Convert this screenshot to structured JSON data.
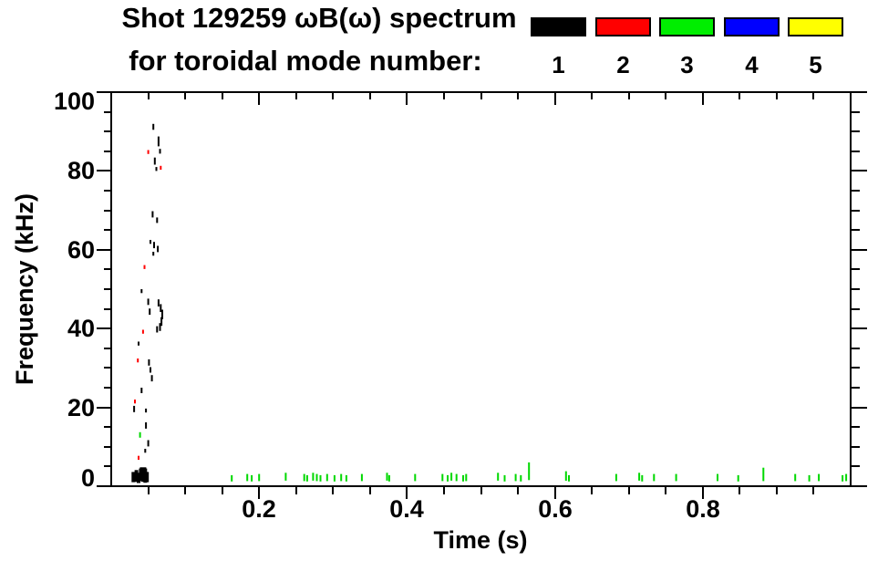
{
  "chart_data": {
    "type": "scatter",
    "title": "Shot 129259 ωB(ω) spectrum",
    "subtitle": "for toroidal mode number:",
    "xlabel": "Time (s)",
    "ylabel": "Frequency (kHz)",
    "xlim": [
      0.0,
      1.0
    ],
    "ylim": [
      0,
      100
    ],
    "grid": false,
    "x_major_ticks": [
      0.2,
      0.4,
      0.6,
      0.8
    ],
    "x_major_labels": [
      "0.2",
      "0.4",
      "0.6",
      "0.8"
    ],
    "x_minor_step": 0.05,
    "y_major_ticks": [
      0,
      20,
      40,
      60,
      80,
      100
    ],
    "y_major_labels": [
      "0",
      "20",
      "40",
      "60",
      "80",
      "100"
    ],
    "y_minor_step": 5,
    "legend": {
      "position": "top-right",
      "entries": [
        {
          "label": "1",
          "color": "#000000"
        },
        {
          "label": "2",
          "color": "#ff0000"
        },
        {
          "label": "3",
          "color": "#00ee00"
        },
        {
          "label": "4",
          "color": "#0000ff"
        },
        {
          "label": "5",
          "color": "#ffff00"
        }
      ]
    },
    "series": [
      {
        "name": "1",
        "color": "#000000",
        "points": [
          [
            0.057,
            91.2,
            1.5
          ],
          [
            0.064,
            87.5,
            2.5
          ],
          [
            0.066,
            85.0,
            1.2
          ],
          [
            0.059,
            82.5,
            1.8
          ],
          [
            0.061,
            80.5,
            1.0
          ],
          [
            0.056,
            69.0,
            1.6
          ],
          [
            0.062,
            67.5,
            1.4
          ],
          [
            0.053,
            62.0,
            1.0
          ],
          [
            0.058,
            61.2,
            1.6
          ],
          [
            0.063,
            60.2,
            1.6
          ],
          [
            0.057,
            59.0,
            1.0
          ],
          [
            0.041,
            49.5,
            1.0
          ],
          [
            0.05,
            46.8,
            1.6
          ],
          [
            0.052,
            44.3,
            1.6
          ],
          [
            0.064,
            46.5,
            1.8
          ],
          [
            0.067,
            45.2,
            2.0
          ],
          [
            0.069,
            43.6,
            2.4
          ],
          [
            0.068,
            41.8,
            2.2
          ],
          [
            0.066,
            40.4,
            2.0
          ],
          [
            0.062,
            39.8,
            1.6
          ],
          [
            0.037,
            36.2,
            1.0
          ],
          [
            0.051,
            31.4,
            1.6
          ],
          [
            0.053,
            29.5,
            1.4
          ],
          [
            0.055,
            27.4,
            1.6
          ],
          [
            0.041,
            24.3,
            1.4
          ],
          [
            0.031,
            19.6,
            1.6
          ],
          [
            0.047,
            19.2,
            1.0
          ],
          [
            0.047,
            15.4,
            1.6
          ],
          [
            0.05,
            10.9,
            1.6
          ],
          [
            0.046,
            9.0,
            1.0
          ],
          [
            0.03,
            2.3,
            2.6,
            4
          ],
          [
            0.034,
            2.6,
            3.0,
            4
          ],
          [
            0.037,
            2.1,
            2.6,
            4
          ],
          [
            0.04,
            2.9,
            3.2,
            4
          ],
          [
            0.043,
            2.4,
            2.6,
            4
          ],
          [
            0.046,
            2.7,
            3.6,
            4
          ],
          [
            0.049,
            2.3,
            2.6,
            3
          ],
          [
            0.043,
            4.0,
            1.6,
            7
          ]
        ]
      },
      {
        "name": "2",
        "color": "#ff0000",
        "points": [
          [
            0.05,
            84.8,
            1.0
          ],
          [
            0.067,
            80.8,
            1.0
          ],
          [
            0.045,
            55.6,
            1.0
          ],
          [
            0.043,
            39.2,
            1.0
          ],
          [
            0.036,
            31.9,
            1.0
          ],
          [
            0.032,
            21.5,
            1.0
          ],
          [
            0.037,
            7.2,
            1.0
          ]
        ]
      },
      {
        "name": "3",
        "color": "#00d800",
        "points": [
          [
            0.039,
            13.0,
            1.4
          ],
          [
            0.163,
            2.0,
            1.6
          ],
          [
            0.184,
            2.2,
            1.8
          ],
          [
            0.19,
            2.0,
            1.6
          ],
          [
            0.2,
            2.2,
            1.8
          ],
          [
            0.236,
            2.4,
            2.0
          ],
          [
            0.261,
            2.2,
            1.8
          ],
          [
            0.265,
            2.0,
            1.6
          ],
          [
            0.273,
            2.4,
            2.0
          ],
          [
            0.278,
            2.2,
            1.8
          ],
          [
            0.283,
            2.0,
            1.6
          ],
          [
            0.292,
            2.2,
            1.8
          ],
          [
            0.302,
            2.0,
            1.6
          ],
          [
            0.311,
            2.2,
            1.8
          ],
          [
            0.318,
            2.0,
            1.6
          ],
          [
            0.339,
            2.2,
            1.8
          ],
          [
            0.373,
            2.4,
            2.0
          ],
          [
            0.376,
            2.0,
            1.6
          ],
          [
            0.411,
            2.2,
            1.8
          ],
          [
            0.448,
            2.2,
            1.8
          ],
          [
            0.455,
            2.0,
            1.6
          ],
          [
            0.46,
            2.4,
            2.0
          ],
          [
            0.467,
            2.2,
            1.8
          ],
          [
            0.476,
            2.0,
            1.6
          ],
          [
            0.48,
            2.2,
            1.8
          ],
          [
            0.523,
            2.4,
            2.0
          ],
          [
            0.532,
            2.0,
            1.6
          ],
          [
            0.547,
            2.2,
            1.8
          ],
          [
            0.554,
            2.0,
            1.6
          ],
          [
            0.565,
            3.8,
            4.5
          ],
          [
            0.615,
            2.6,
            2.4
          ],
          [
            0.619,
            2.0,
            1.6
          ],
          [
            0.683,
            2.2,
            1.8
          ],
          [
            0.714,
            2.4,
            2.0
          ],
          [
            0.718,
            2.0,
            1.6
          ],
          [
            0.734,
            2.2,
            1.8
          ],
          [
            0.764,
            2.2,
            1.8
          ],
          [
            0.82,
            2.2,
            1.8
          ],
          [
            0.848,
            2.0,
            1.6
          ],
          [
            0.882,
            3.0,
            3.4
          ],
          [
            0.925,
            2.2,
            1.8
          ],
          [
            0.944,
            2.0,
            1.6
          ],
          [
            0.957,
            2.2,
            1.8
          ],
          [
            0.989,
            2.0,
            1.6
          ],
          [
            0.994,
            2.2,
            1.8
          ]
        ]
      },
      {
        "name": "4",
        "color": "#0000ff",
        "points": []
      },
      {
        "name": "5",
        "color": "#ffff00",
        "points": []
      }
    ]
  }
}
